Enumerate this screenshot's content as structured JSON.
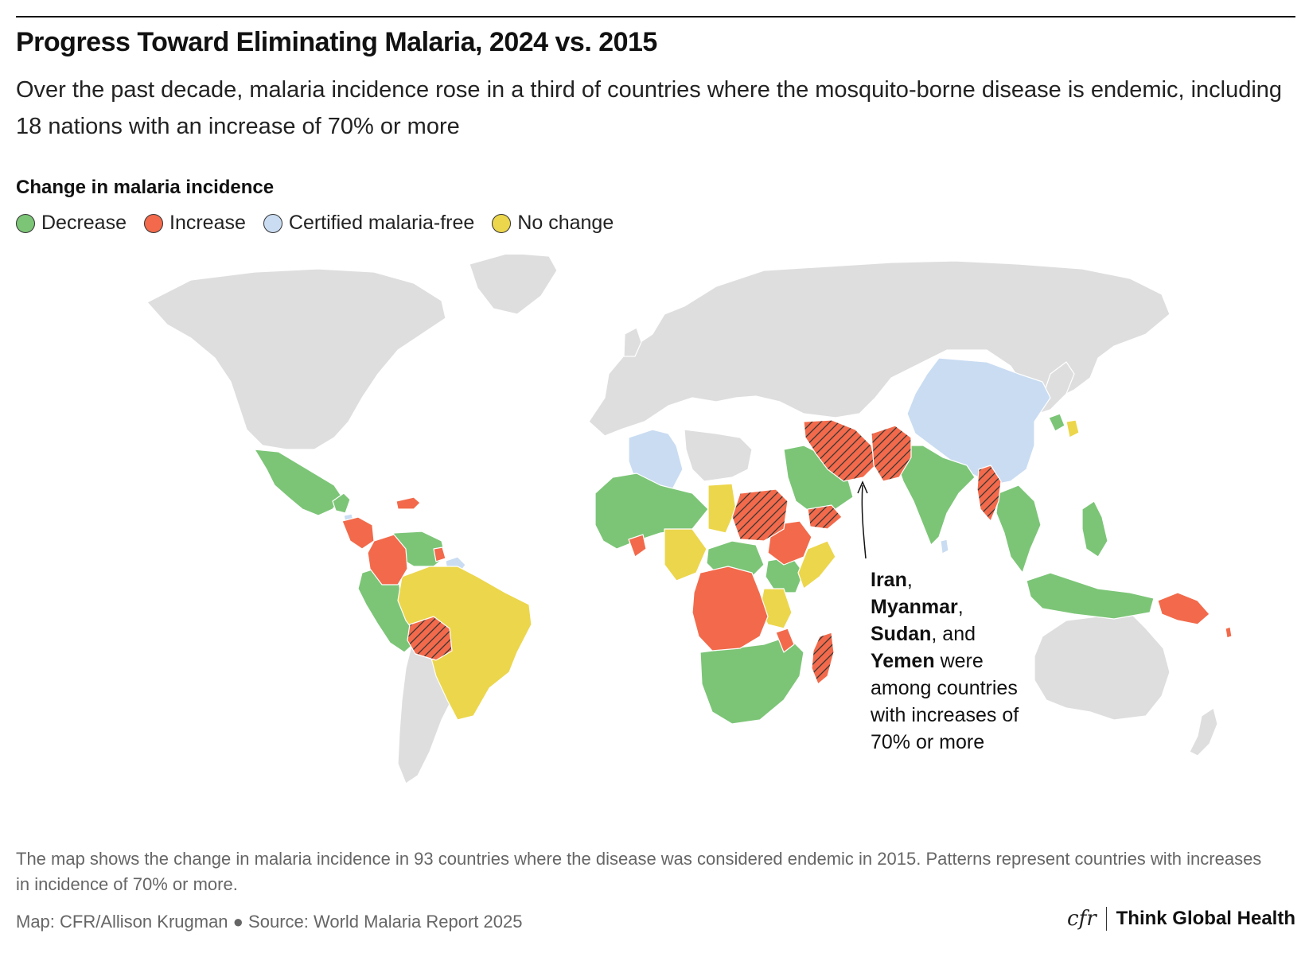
{
  "title": "Progress Toward Eliminating Malaria, 2024 vs. 2015",
  "subtitle": "Over the past decade, malaria incidence rose in a third of countries where the mosquito-borne disease is endemic, including 18 nations with an increase of 70% or more",
  "legend": {
    "title": "Change in malaria incidence",
    "items": [
      {
        "label": "Decrease",
        "color": "#7cc577"
      },
      {
        "label": "Increase",
        "color": "#f26a4b"
      },
      {
        "label": "Certified malaria-free",
        "color": "#c9dcf2"
      },
      {
        "label": "No change",
        "color": "#ecd64c"
      }
    ]
  },
  "colors": {
    "land": "#dedede",
    "border": "#ffffff",
    "hatch": "#333333"
  },
  "annotation": {
    "name1": "Iran",
    "sep1": ",",
    "name2": "Myanmar",
    "sep2": ",",
    "name3": "Sudan",
    "sep3": ", and",
    "name4": "Yemen",
    "rest": "were among countries with increases of 70% or more"
  },
  "note": "The map shows the change in malaria incidence in 93 countries where the disease was considered endemic in 2015. Patterns represent countries with increases in incidence of 70% or more.",
  "credit": "Map: CFR/Allison Krugman ● Source: World Malaria Report 2025",
  "brand": {
    "logo": "cfr",
    "name": "Think Global Health"
  }
}
